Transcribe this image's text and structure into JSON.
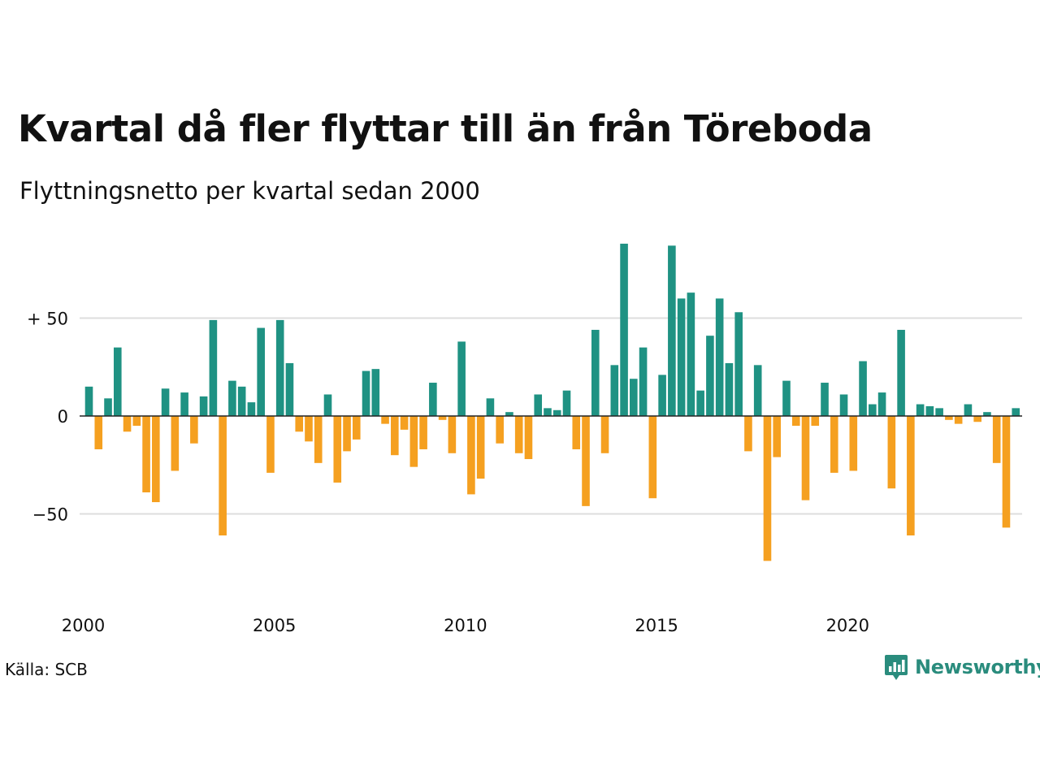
{
  "header": {
    "title": "Kvartal då fler flyttar till än från Töreboda",
    "subtitle": "Flyttningsnetto per kvartal sedan 2000"
  },
  "footer": {
    "source": "Källa: SCB",
    "brand": "Newsworthy"
  },
  "colors": {
    "positive": "#1f9283",
    "negative": "#f5a020",
    "gridline": "#dddddd",
    "zero_line": "#222222",
    "brand": "#2a8c7d"
  },
  "icons": {
    "brand_logo": "bar-chart-speech-bubble-icon"
  },
  "chart_data": {
    "type": "bar",
    "title": "Kvartal då fler flyttar till än från Töreboda",
    "subtitle": "Flyttningsnetto per kvartal sedan 2000",
    "xlabel": "",
    "ylabel": "",
    "start_year": 2000,
    "periods_per_year": 4,
    "x_ticks": [
      "2000",
      "2005",
      "2010",
      "2015",
      "2020"
    ],
    "y_ticks": [
      {
        "value": 50,
        "label": "+ 50"
      },
      {
        "value": 0,
        "label": "0"
      },
      {
        "value": -50,
        "label": "−50"
      }
    ],
    "ylim": [
      -93,
      93
    ],
    "grid": true,
    "values": [
      15,
      -17,
      9,
      35,
      -8,
      -5,
      -39,
      -44,
      14,
      -28,
      12,
      -14,
      10,
      49,
      -61,
      18,
      15,
      7,
      45,
      -29,
      49,
      27,
      -8,
      -13,
      -24,
      11,
      -34,
      -18,
      -12,
      23,
      24,
      -4,
      -20,
      -7,
      -26,
      -17,
      17,
      -2,
      -19,
      38,
      -40,
      -32,
      9,
      -14,
      2,
      -19,
      -22,
      11,
      4,
      3,
      13,
      -17,
      -46,
      44,
      -19,
      26,
      88,
      19,
      35,
      -42,
      21,
      87,
      60,
      63,
      13,
      41,
      60,
      27,
      53,
      -18,
      26,
      -74,
      -21,
      18,
      -5,
      -43,
      -5,
      17,
      -29,
      11,
      -28,
      28,
      6,
      12,
      -37,
      44,
      -61,
      6,
      5,
      4,
      -2,
      -4,
      6,
      -3,
      2,
      -24,
      -57,
      4
    ]
  }
}
